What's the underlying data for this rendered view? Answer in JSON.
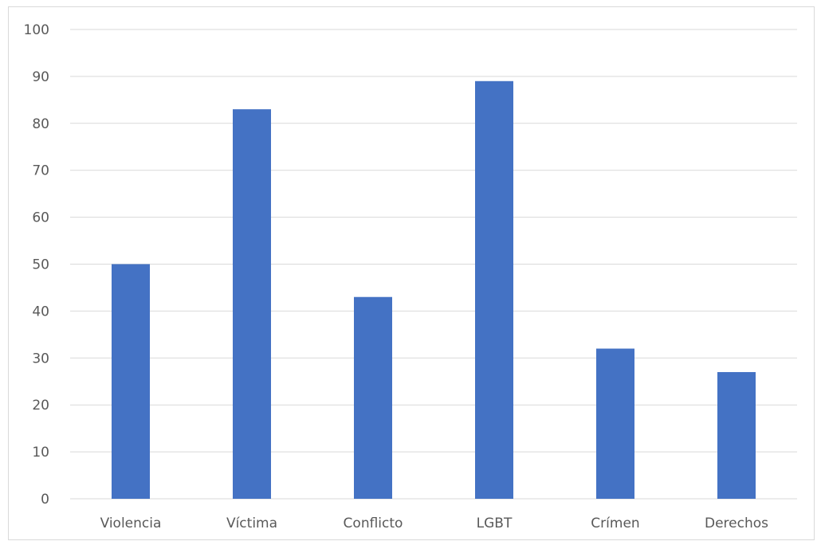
{
  "chart_data": {
    "type": "bar",
    "title": "",
    "xlabel": "",
    "ylabel": "",
    "categories": [
      "Violencia",
      "Víctima",
      "Conflicto",
      "LGBT",
      "Crímen",
      "Derechos"
    ],
    "values": [
      50,
      83,
      43,
      89,
      32,
      27
    ],
    "ylim": [
      0,
      100
    ],
    "yticks": [
      0,
      10,
      20,
      30,
      40,
      50,
      60,
      70,
      80,
      90,
      100
    ],
    "grid": true,
    "legend": "none",
    "colors": {
      "bar": "#4472C4",
      "grid": "#d9d9d9",
      "text": "#595959"
    }
  }
}
